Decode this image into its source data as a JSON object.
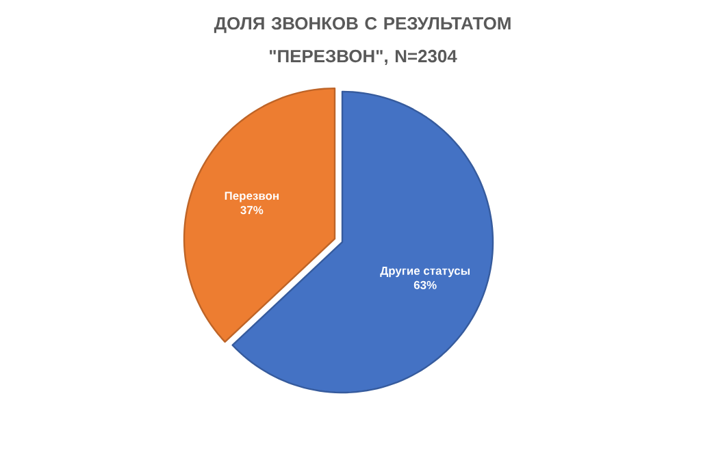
{
  "chart_data": {
    "type": "pie",
    "title": "ДОЛЯ ЗВОНКОВ С РЕЗУЛЬТАТОМ \"ПЕРЕЗВОН\", N=2304",
    "categories": [
      "Другие статусы",
      "Перезвон"
    ],
    "values": [
      63,
      37
    ],
    "colors": [
      "#4472c4",
      "#ed7d31"
    ],
    "value_labels": [
      "63%",
      "37%"
    ]
  }
}
